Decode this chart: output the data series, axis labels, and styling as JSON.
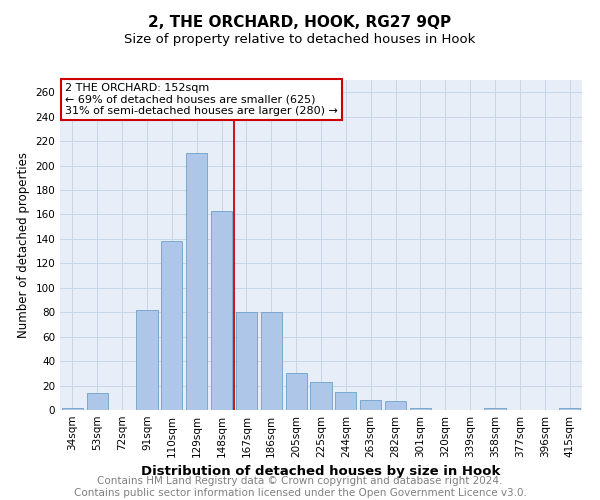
{
  "title": "2, THE ORCHARD, HOOK, RG27 9QP",
  "subtitle": "Size of property relative to detached houses in Hook",
  "xlabel": "Distribution of detached houses by size in Hook",
  "ylabel": "Number of detached properties",
  "categories": [
    "34sqm",
    "53sqm",
    "72sqm",
    "91sqm",
    "110sqm",
    "129sqm",
    "148sqm",
    "167sqm",
    "186sqm",
    "205sqm",
    "225sqm",
    "244sqm",
    "263sqm",
    "282sqm",
    "301sqm",
    "320sqm",
    "339sqm",
    "358sqm",
    "377sqm",
    "396sqm",
    "415sqm"
  ],
  "values": [
    2,
    14,
    0,
    82,
    138,
    210,
    163,
    80,
    80,
    30,
    23,
    15,
    8,
    7,
    2,
    0,
    0,
    2,
    0,
    0,
    2
  ],
  "bar_color": "#aec6e8",
  "bar_edge_color": "#6fa0cc",
  "grid_color": "#c8d4e8",
  "background_color": "#e8eef8",
  "marker_label": "2 THE ORCHARD: 152sqm",
  "annotation_line1": "← 69% of detached houses are smaller (625)",
  "annotation_line2": "31% of semi-detached houses are larger (280) →",
  "annotation_box_color": "#cc0000",
  "red_line_x": 6.5,
  "ylim": [
    0,
    270
  ],
  "yticks": [
    0,
    20,
    40,
    60,
    80,
    100,
    120,
    140,
    160,
    180,
    200,
    220,
    240,
    260
  ],
  "footer_line1": "Contains HM Land Registry data © Crown copyright and database right 2024.",
  "footer_line2": "Contains public sector information licensed under the Open Government Licence v3.0.",
  "title_fontsize": 11,
  "subtitle_fontsize": 9.5,
  "xlabel_fontsize": 9.5,
  "ylabel_fontsize": 8.5,
  "tick_fontsize": 7.5,
  "annotation_fontsize": 8,
  "footer_fontsize": 7.5
}
